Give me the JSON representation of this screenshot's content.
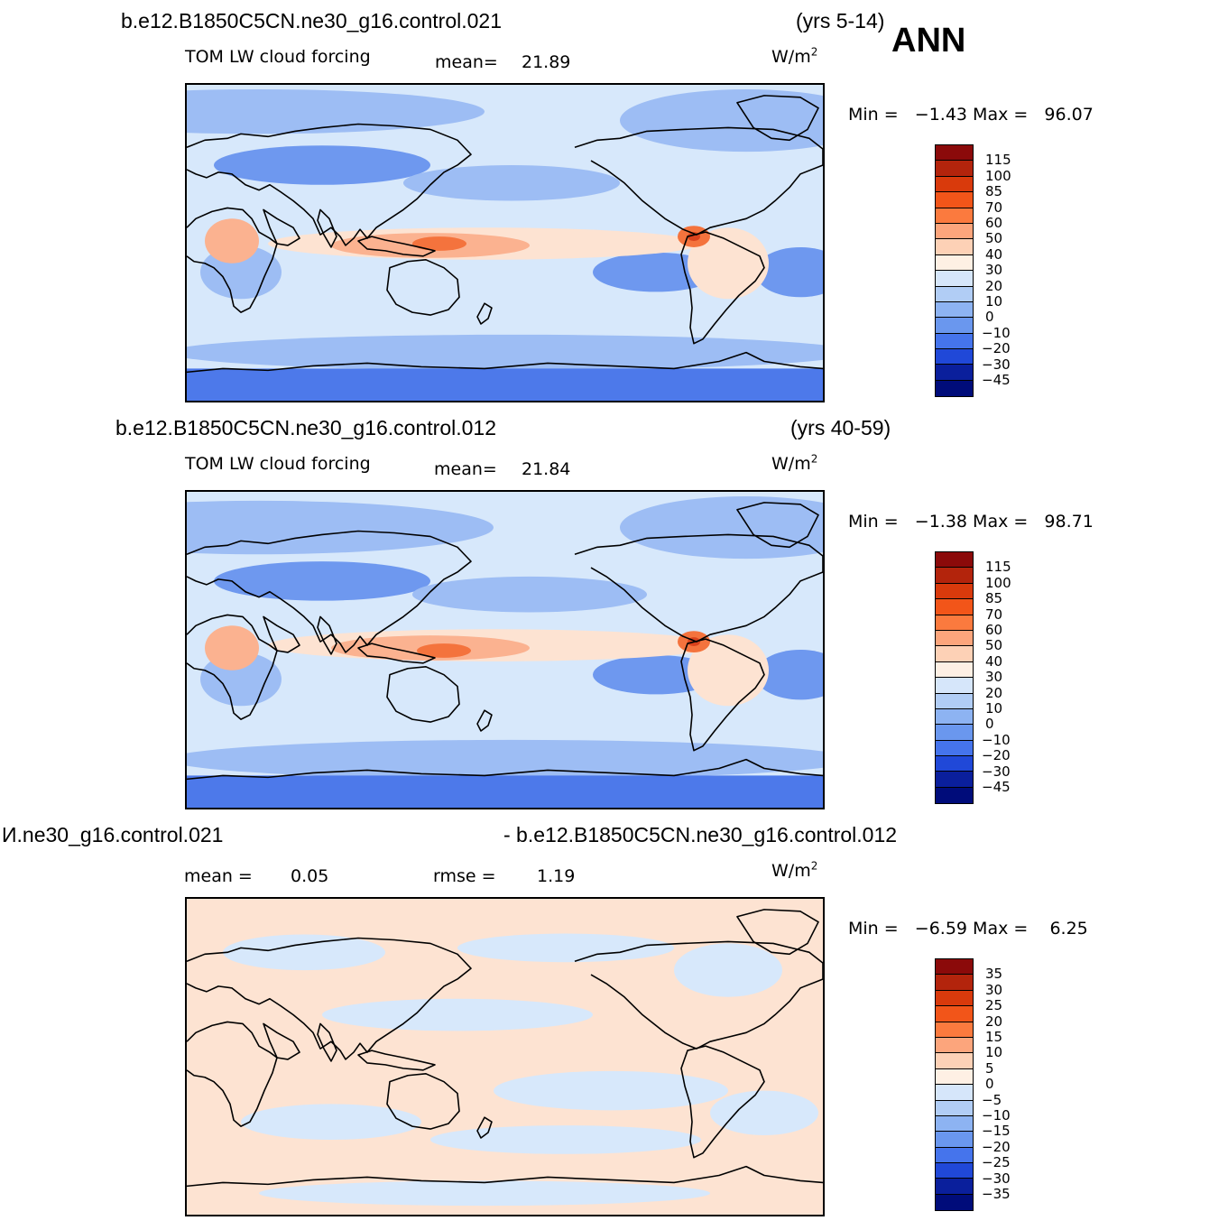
{
  "season": "ANN",
  "units_base": "W/m",
  "units_exp": "2",
  "panels": [
    {
      "case_left": "b.e12.B1850C5CN.ne30_g16.control.021",
      "case_right": "(yrs 5-14)",
      "title": "TOM LW cloud forcing",
      "stat1_label": "mean=",
      "stat1_value": "21.89",
      "stat2_label": "",
      "stat2_value": "",
      "minmax": "Min =   −1.43 Max =   96.07",
      "colorbar_labels": [
        "115",
        "100",
        "85",
        "70",
        "60",
        "50",
        "40",
        "30",
        "20",
        "10",
        "0",
        "−10",
        "−20",
        "−30",
        "−45"
      ]
    },
    {
      "case_left": "b.e12.B1850C5CN.ne30_g16.control.012",
      "case_right": "(yrs 40-59)",
      "title": "TOM LW cloud forcing",
      "stat1_label": "mean=",
      "stat1_value": "21.84",
      "stat2_label": "",
      "stat2_value": "",
      "minmax": "Min =   −1.38 Max =   98.71",
      "colorbar_labels": [
        "115",
        "100",
        "85",
        "70",
        "60",
        "50",
        "40",
        "30",
        "20",
        "10",
        "0",
        "−10",
        "−20",
        "−30",
        "−45"
      ]
    },
    {
      "case_left": "И.ne30_g16.control.021",
      "case_right": "- b.e12.B1850C5CN.ne30_g16.control.012",
      "title": "",
      "stat1_label": "mean =",
      "stat1_value": "0.05",
      "stat2_label": "rmse =",
      "stat2_value": "1.19",
      "minmax": "Min =   −6.59 Max =    6.25",
      "colorbar_labels": [
        "35",
        "30",
        "25",
        "20",
        "15",
        "10",
        "5",
        "0",
        "−5",
        "−10",
        "−15",
        "−20",
        "−25",
        "−30",
        "−35"
      ]
    }
  ],
  "colors": {
    "colorbar": [
      "#8b0a0a",
      "#b3240c",
      "#d93a0c",
      "#f25519",
      "#fb7a3e",
      "#fca57c",
      "#fdd1b6",
      "#fef0e4",
      "#d6e6fa",
      "#b1cdf5",
      "#8db3f2",
      "#6a97ee",
      "#4574ec",
      "#2048d8",
      "#0a1f9c",
      "#000c7a"
    ],
    "ocean_light": "#d7e8fb",
    "mid_blue": "#9dbdf4",
    "deep_blue": "#6e98ef",
    "strong_blue": "#4d79ea",
    "peach": "#fde3d2",
    "salmon": "#fbb290",
    "orange": "#f4733d",
    "red": "#d9421c",
    "coast": "#000000"
  }
}
